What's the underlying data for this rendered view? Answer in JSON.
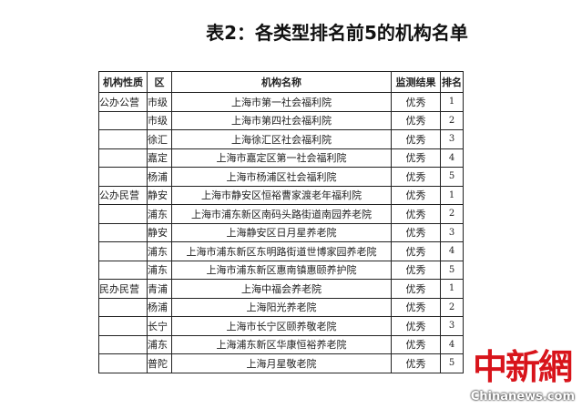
{
  "title": "表2：各类型排名前5的机构名单",
  "headers": [
    "机构性质",
    "区",
    "机构名称",
    "监测结果",
    "排名"
  ],
  "rows": [
    [
      "公办公营",
      "市级",
      "上海市第一社会福利院",
      "优秀",
      "1"
    ],
    [
      "",
      "市级",
      "上海市第四社会福利院",
      "优秀",
      "2"
    ],
    [
      "",
      "徐汇",
      "上海徐汇区社会福利院",
      "优秀",
      "3"
    ],
    [
      "",
      "嘉定",
      "上海市嘉定区第一社会福利院",
      "优秀",
      "4"
    ],
    [
      "",
      "杨浦",
      "上海市杨浦区社会福利院",
      "优秀",
      "5"
    ],
    [
      "公办民营",
      "静安",
      "上海市静安区恒裕曹家渡老年福利院",
      "优秀",
      "1"
    ],
    [
      "",
      "浦东",
      "上海市浦东新区南码头路街道南园养老院",
      "优秀",
      "2"
    ],
    [
      "",
      "静安",
      "上海静安区日月星养老院",
      "优秀",
      "3"
    ],
    [
      "",
      "浦东",
      "上海市浦东新区东明路街道世博家园养老院",
      "优秀",
      "4"
    ],
    [
      "",
      "浦东",
      "上海市浦东新区惠南镇惠颐养护院",
      "优秀",
      "5"
    ],
    [
      "民办民营",
      "青浦",
      "上海中福会养老院",
      "优秀",
      "1"
    ],
    [
      "",
      "杨浦",
      "上海阳光养老院",
      "优秀",
      "2"
    ],
    [
      "",
      "长宁",
      "上海市长宁区颐养敬老院",
      "优秀",
      "3"
    ],
    [
      "",
      "浦东",
      "上海浦东新区华康恒裕养老院",
      "优秀",
      "4"
    ],
    [
      "",
      "普陀",
      "上海月星敬老院",
      "优秀",
      "5"
    ]
  ],
  "watermark": {
    "logo": "中新网",
    "site": "Chinanews.com",
    "color": "#d8141b"
  }
}
